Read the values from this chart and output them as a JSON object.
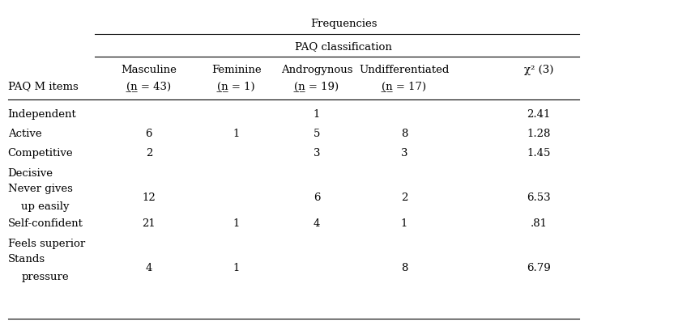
{
  "title_row1": "Frequencies",
  "title_row2": "PAQ classification",
  "col_headers": [
    [
      "Masculine",
      "(̲n = 43)"
    ],
    [
      "Feminine",
      "(̲n = 1)"
    ],
    [
      "Androgynous",
      "(̲n = 19)"
    ],
    [
      "Undifferentiated",
      "(̲n = 17)"
    ],
    [
      "χ² (3)",
      ""
    ]
  ],
  "row_label_col": "PAQ M items",
  "rows": [
    {
      "label": [
        "Independent",
        ""
      ],
      "masc": "",
      "fem": "",
      "andro": "1",
      "undiff": "",
      "chi2": "2.41"
    },
    {
      "label": [
        "Active",
        ""
      ],
      "masc": "6",
      "fem": "1",
      "andro": "5",
      "undiff": "8",
      "chi2": "1.28"
    },
    {
      "label": [
        "Competitive",
        ""
      ],
      "masc": "2",
      "fem": "",
      "andro": "3",
      "undiff": "3",
      "chi2": "1.45"
    },
    {
      "label": [
        "Decisive",
        ""
      ],
      "masc": "",
      "fem": "",
      "andro": "",
      "undiff": "",
      "chi2": ""
    },
    {
      "label": [
        "Never gives",
        "up easily"
      ],
      "masc": "12",
      "fem": "",
      "andro": "6",
      "undiff": "2",
      "chi2": "6.53"
    },
    {
      "label": [
        "Self-confident",
        ""
      ],
      "masc": "21",
      "fem": "1",
      "andro": "4",
      "undiff": "1",
      "chi2": ".81"
    },
    {
      "label": [
        "Feels superior",
        ""
      ],
      "masc": "",
      "fem": "",
      "andro": "",
      "undiff": "",
      "chi2": ""
    },
    {
      "label": [
        "Stands",
        "pressure"
      ],
      "masc": "4",
      "fem": "1",
      "andro": "",
      "undiff": "8",
      "chi2": "6.79"
    }
  ],
  "bg_color": "#ffffff",
  "text_color": "#000000",
  "font_size": 9.5
}
